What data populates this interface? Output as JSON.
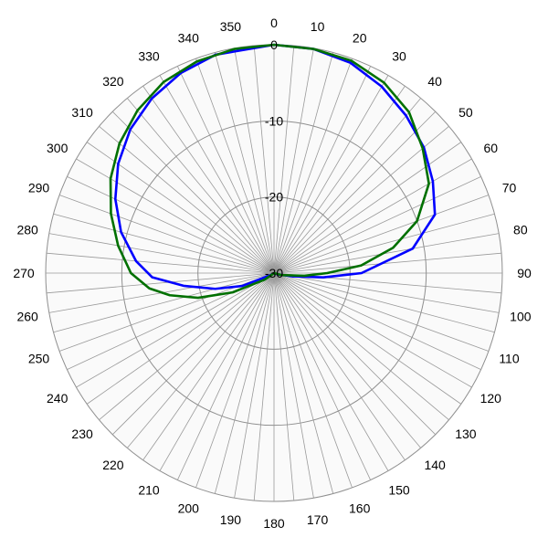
{
  "chart_data": {
    "type": "polar-line",
    "title": "",
    "angle_unit": "degrees",
    "angle_ticks": [
      0,
      10,
      20,
      30,
      40,
      50,
      60,
      70,
      80,
      90,
      100,
      110,
      120,
      130,
      140,
      150,
      160,
      170,
      180,
      190,
      200,
      210,
      220,
      230,
      240,
      250,
      260,
      270,
      280,
      290,
      300,
      310,
      320,
      330,
      340,
      350
    ],
    "angle_tick_labels": [
      "0",
      "10",
      "20",
      "30",
      "40",
      "50",
      "60",
      "70",
      "80",
      "90",
      "100",
      "110",
      "120",
      "130",
      "140",
      "150",
      "160",
      "170",
      "180",
      "190",
      "200",
      "210",
      "220",
      "230",
      "240",
      "250",
      "260",
      "270",
      "280",
      "290",
      "300",
      "310",
      "320",
      "330",
      "340",
      "350"
    ],
    "radial_range": [
      -30,
      0
    ],
    "radial_ticks": [
      0,
      -10,
      -20,
      -30
    ],
    "radial_tick_labels": [
      "0",
      "-10",
      "-20",
      "-30"
    ],
    "grid": true,
    "series": [
      {
        "color": "#0000ff",
        "points": [
          {
            "angle": 0,
            "value": 0
          },
          {
            "angle": 10,
            "value": -0.1
          },
          {
            "angle": 20,
            "value": -0.6
          },
          {
            "angle": 30,
            "value": -1.7
          },
          {
            "angle": 40,
            "value": -3.0
          },
          {
            "angle": 50,
            "value": -4.3
          },
          {
            "angle": 60,
            "value": -5.9
          },
          {
            "angle": 70,
            "value": -7.5
          },
          {
            "angle": 80,
            "value": -11.5
          },
          {
            "angle": 90,
            "value": -18.5
          },
          {
            "angle": 95,
            "value": -23.5
          },
          {
            "angle": 100,
            "value": -27.5
          },
          {
            "angle": 110,
            "value": -29.5
          },
          {
            "angle": 180,
            "value": -30
          },
          {
            "angle": 240,
            "value": -29.5
          },
          {
            "angle": 248,
            "value": -25.5
          },
          {
            "angle": 255,
            "value": -22.0
          },
          {
            "angle": 262,
            "value": -18.0
          },
          {
            "angle": 268,
            "value": -14.0
          },
          {
            "angle": 275,
            "value": -11.8
          },
          {
            "angle": 285,
            "value": -9.2
          },
          {
            "angle": 295,
            "value": -7.0
          },
          {
            "angle": 305,
            "value": -5.0
          },
          {
            "angle": 315,
            "value": -3.3
          },
          {
            "angle": 325,
            "value": -2.0
          },
          {
            "angle": 335,
            "value": -1.0
          },
          {
            "angle": 345,
            "value": -0.3
          },
          {
            "angle": 360,
            "value": 0
          }
        ]
      },
      {
        "color": "#007000",
        "points": [
          {
            "angle": 0,
            "value": 0
          },
          {
            "angle": 10,
            "value": -0.1
          },
          {
            "angle": 20,
            "value": -0.3
          },
          {
            "angle": 30,
            "value": -1.1
          },
          {
            "angle": 40,
            "value": -2.4
          },
          {
            "angle": 50,
            "value": -4.5
          },
          {
            "angle": 60,
            "value": -6.5
          },
          {
            "angle": 70,
            "value": -10.0
          },
          {
            "angle": 78,
            "value": -14.0
          },
          {
            "angle": 85,
            "value": -18.5
          },
          {
            "angle": 90,
            "value": -23.0
          },
          {
            "angle": 95,
            "value": -26.0
          },
          {
            "angle": 105,
            "value": -29.0
          },
          {
            "angle": 180,
            "value": -30
          },
          {
            "angle": 235,
            "value": -28.5
          },
          {
            "angle": 245,
            "value": -24.0
          },
          {
            "angle": 252,
            "value": -19.5
          },
          {
            "angle": 258,
            "value": -16.0
          },
          {
            "angle": 263,
            "value": -13.5
          },
          {
            "angle": 270,
            "value": -11.2
          },
          {
            "angle": 280,
            "value": -9.2
          },
          {
            "angle": 290,
            "value": -7.2
          },
          {
            "angle": 300,
            "value": -5.2
          },
          {
            "angle": 310,
            "value": -3.5
          },
          {
            "angle": 320,
            "value": -2.1
          },
          {
            "angle": 330,
            "value": -1.0
          },
          {
            "angle": 340,
            "value": -0.4
          },
          {
            "angle": 350,
            "value": -0.1
          },
          {
            "angle": 360,
            "value": 0
          }
        ]
      }
    ]
  }
}
